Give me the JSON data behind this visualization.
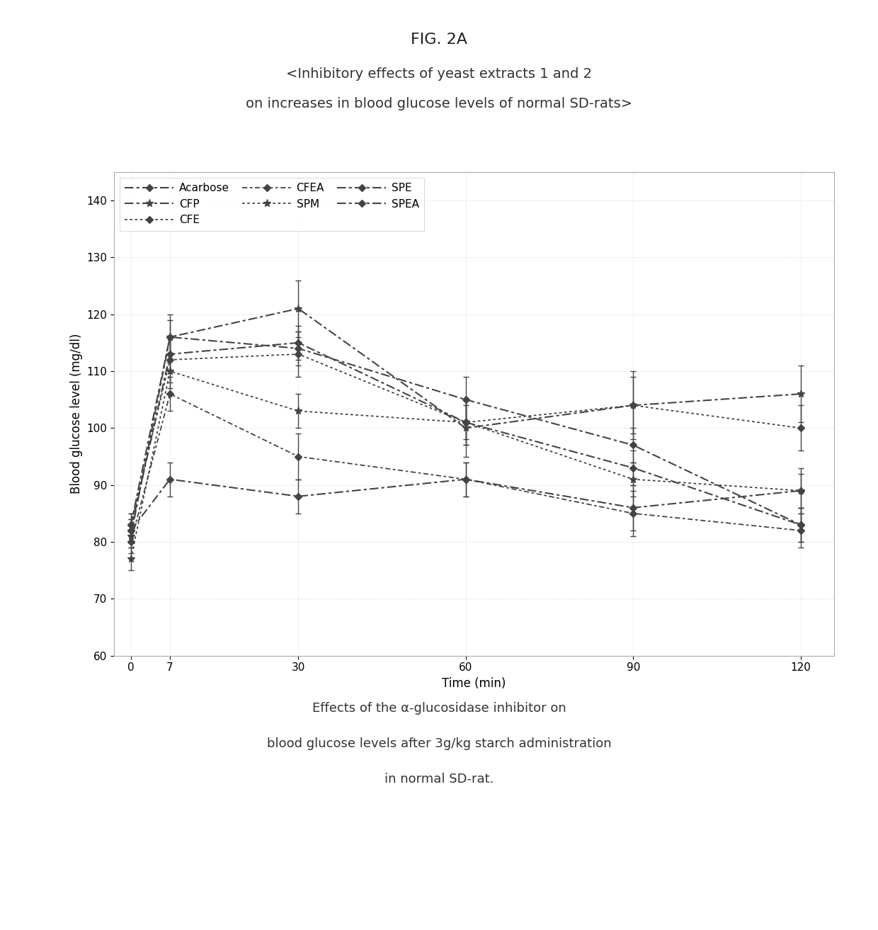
{
  "fig_title": "FIG. 2A",
  "subtitle_line1": "<Inhibitory effects of yeast extracts 1 and 2",
  "subtitle_line2": "on increases in blood glucose levels of normal SD-rats>",
  "xlabel": "Time (min)",
  "ylabel": "Blood glucose level (mg/dl)",
  "caption_line1": "Effects of the α-glucosidase inhibitor on",
  "caption_line2": "blood glucose levels after 3g/kg starch administration",
  "caption_line3": "in normal SD-rat.",
  "x": [
    0,
    7,
    30,
    60,
    90,
    120
  ],
  "series_order": [
    "Acarbose",
    "CFP",
    "CFE",
    "CFEA",
    "SPM",
    "SPE",
    "SPEA"
  ],
  "y_values": {
    "Acarbose": [
      82,
      91,
      88,
      91,
      86,
      89
    ],
    "CFP": [
      81,
      116,
      121,
      100,
      104,
      106
    ],
    "CFE": [
      83,
      112,
      113,
      101,
      104,
      100
    ],
    "CFEA": [
      80,
      106,
      95,
      91,
      85,
      82
    ],
    "SPM": [
      77,
      110,
      103,
      101,
      91,
      89
    ],
    "SPE": [
      83,
      116,
      114,
      105,
      97,
      83
    ],
    "SPEA": [
      82,
      113,
      115,
      101,
      93,
      83
    ]
  },
  "yerr_values": {
    "Acarbose": [
      2,
      3,
      3,
      3,
      4,
      4
    ],
    "CFP": [
      2,
      4,
      5,
      5,
      6,
      5
    ],
    "CFE": [
      2,
      4,
      4,
      4,
      5,
      4
    ],
    "CFEA": [
      2,
      3,
      4,
      3,
      4,
      3
    ],
    "SPM": [
      2,
      3,
      3,
      3,
      3,
      3
    ],
    "SPE": [
      2,
      3,
      3,
      4,
      3,
      3
    ],
    "SPEA": [
      2,
      3,
      3,
      4,
      3,
      3
    ]
  },
  "dash_sequences": {
    "Acarbose": [
      6,
      2,
      2,
      2
    ],
    "CFP": [
      6,
      2,
      2,
      2
    ],
    "CFE": [
      2,
      2
    ],
    "CFEA": [
      4,
      2,
      2,
      2
    ],
    "SPM": [
      2,
      2
    ],
    "SPE": [
      6,
      2,
      2,
      2
    ],
    "SPEA": [
      6,
      2,
      2,
      2
    ]
  },
  "line_widths": {
    "Acarbose": 1.5,
    "CFP": 1.5,
    "CFE": 1.3,
    "CFEA": 1.3,
    "SPM": 1.3,
    "SPE": 1.5,
    "SPEA": 1.5
  },
  "markers": {
    "Acarbose": "D",
    "CFP": "*",
    "CFE": "D",
    "CFEA": "D",
    "SPM": "*",
    "SPE": "D",
    "SPEA": "D"
  },
  "marker_sizes": {
    "Acarbose": 5,
    "CFP": 8,
    "CFE": 5,
    "CFEA": 5,
    "SPM": 8,
    "SPE": 5,
    "SPEA": 5
  },
  "ylim": [
    60,
    145
  ],
  "yticks": [
    60,
    70,
    80,
    90,
    100,
    110,
    120,
    130,
    140
  ],
  "xticks": [
    0,
    7,
    30,
    60,
    90,
    120
  ],
  "line_color": "#444444",
  "grid_color": "#cccccc",
  "background_color": "#ffffff",
  "fig_title_fontsize": 16,
  "subtitle_fontsize": 14,
  "caption_fontsize": 13,
  "axis_label_fontsize": 12,
  "tick_fontsize": 11,
  "legend_fontsize": 11
}
